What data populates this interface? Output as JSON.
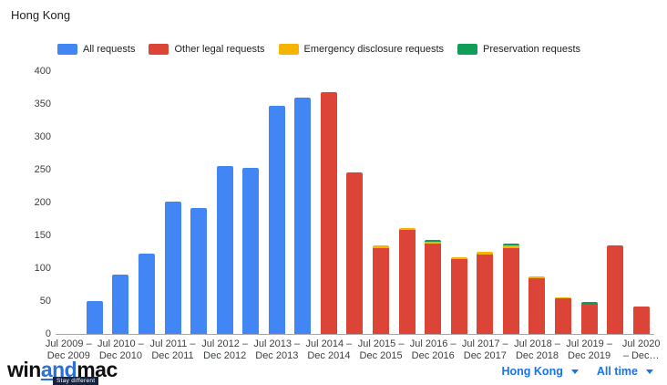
{
  "page": {
    "title": "Hong Kong"
  },
  "colors": {
    "all": "#4285f4",
    "other": "#db4437",
    "emergency": "#f4b400",
    "preservation": "#0f9d58",
    "link_blue": "#1a73e8",
    "axis_text": "#3c4043",
    "axis_line": "#a6a6a6"
  },
  "legend": [
    {
      "key": "all",
      "label": "All requests"
    },
    {
      "key": "other",
      "label": "Other legal requests"
    },
    {
      "key": "emergency",
      "label": "Emergency disclosure requests"
    },
    {
      "key": "preservation",
      "label": "Preservation requests"
    }
  ],
  "chart_data": {
    "type": "bar",
    "stacked": true,
    "title": "Hong Kong",
    "xlabel": "",
    "ylabel": "",
    "ylim": [
      0,
      400
    ],
    "yticks": [
      400,
      350,
      300,
      250,
      200,
      150,
      100,
      50,
      0
    ],
    "grid": false,
    "legend_position": "top",
    "categories": [
      "Jul 2009 –\nDec 2009",
      "",
      "Jul 2010 –\nDec 2010",
      "",
      "Jul 2011 –\nDec 2011",
      "",
      "Jul 2012 –\nDec 2012",
      "",
      "Jul 2013 –\nDec 2013",
      "",
      "Jul 2014 –\nDec 2014",
      "",
      "Jul 2015 –\nDec 2015",
      "",
      "Jul 2016 –\nDec 2016",
      "",
      "Jul 2017 –\nDec 2017",
      "",
      "Jul 2018 –\nDec 2018",
      "",
      "Jul 2019 –\nDec 2019",
      "",
      "Jul 2020\n– Dec…"
    ],
    "series": [
      {
        "name": "All requests",
        "key": "all",
        "values": [
          0,
          50,
          90,
          122,
          202,
          191,
          256,
          253,
          347,
          360,
          0,
          0,
          0,
          0,
          0,
          0,
          0,
          0,
          0,
          0,
          0,
          0,
          0
        ]
      },
      {
        "name": "Other legal requests",
        "key": "other",
        "values": [
          0,
          0,
          0,
          0,
          0,
          0,
          0,
          0,
          0,
          0,
          368,
          246,
          130,
          159,
          138,
          114,
          121,
          131,
          85,
          54,
          45,
          135,
          41
        ]
      },
      {
        "name": "Emergency disclosure requests",
        "key": "emergency",
        "values": [
          0,
          0,
          0,
          0,
          0,
          0,
          0,
          0,
          0,
          0,
          0,
          0,
          5,
          2,
          2,
          3,
          4,
          4,
          3,
          1,
          0,
          0,
          1
        ]
      },
      {
        "name": "Preservation requests",
        "key": "preservation",
        "values": [
          0,
          0,
          0,
          0,
          0,
          0,
          0,
          0,
          0,
          0,
          0,
          0,
          0,
          0,
          3,
          0,
          0,
          3,
          0,
          0,
          3,
          0,
          0
        ]
      }
    ]
  },
  "footer": {
    "logo": {
      "win": "win",
      "and": "and",
      "mac": "mac",
      "tagline": "Stay different"
    },
    "region_filter": {
      "label": "Hong Kong"
    },
    "time_filter": {
      "label": "All time"
    }
  }
}
